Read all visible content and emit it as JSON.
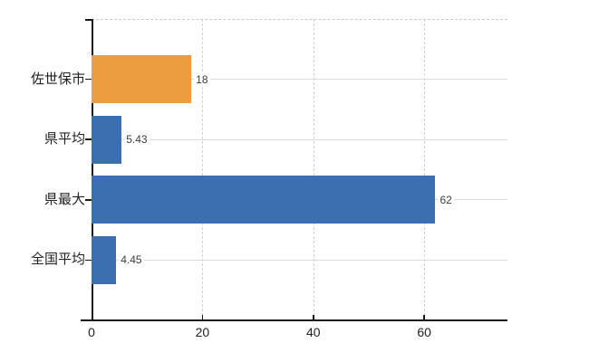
{
  "chart_data": {
    "type": "bar",
    "orientation": "horizontal",
    "title": "",
    "xlabel": "",
    "ylabel": "",
    "categories": [
      "佐世保市",
      "県平均",
      "県最大",
      "全国平均"
    ],
    "values": [
      18,
      5.43,
      62,
      4.45
    ],
    "value_labels": [
      "18",
      "5.43",
      "62",
      "4.45"
    ],
    "bar_colors": [
      "#ec9d3f",
      "#3b6fb0",
      "#3b6fb0",
      "#3b6fb0"
    ],
    "xlim": [
      0,
      75
    ],
    "x_ticks": [
      0,
      20,
      40,
      60
    ],
    "x_tick_labels": [
      "0",
      "20",
      "40",
      "60"
    ],
    "grid": "vertical dashed gridlines at x ticks; solid light horizontal line at each category center; dashed top border",
    "legend": "none"
  },
  "style": {
    "background": "#ffffff",
    "axis_color": "#1a1a1a",
    "vgrid_color": "#d2d2d2",
    "hgrid_color": "#d6ded6",
    "top_border_color": "#cccccc",
    "category_label_color": "#222222",
    "value_label_color": "#3d3d3d",
    "tick_label_color": "#222222"
  }
}
